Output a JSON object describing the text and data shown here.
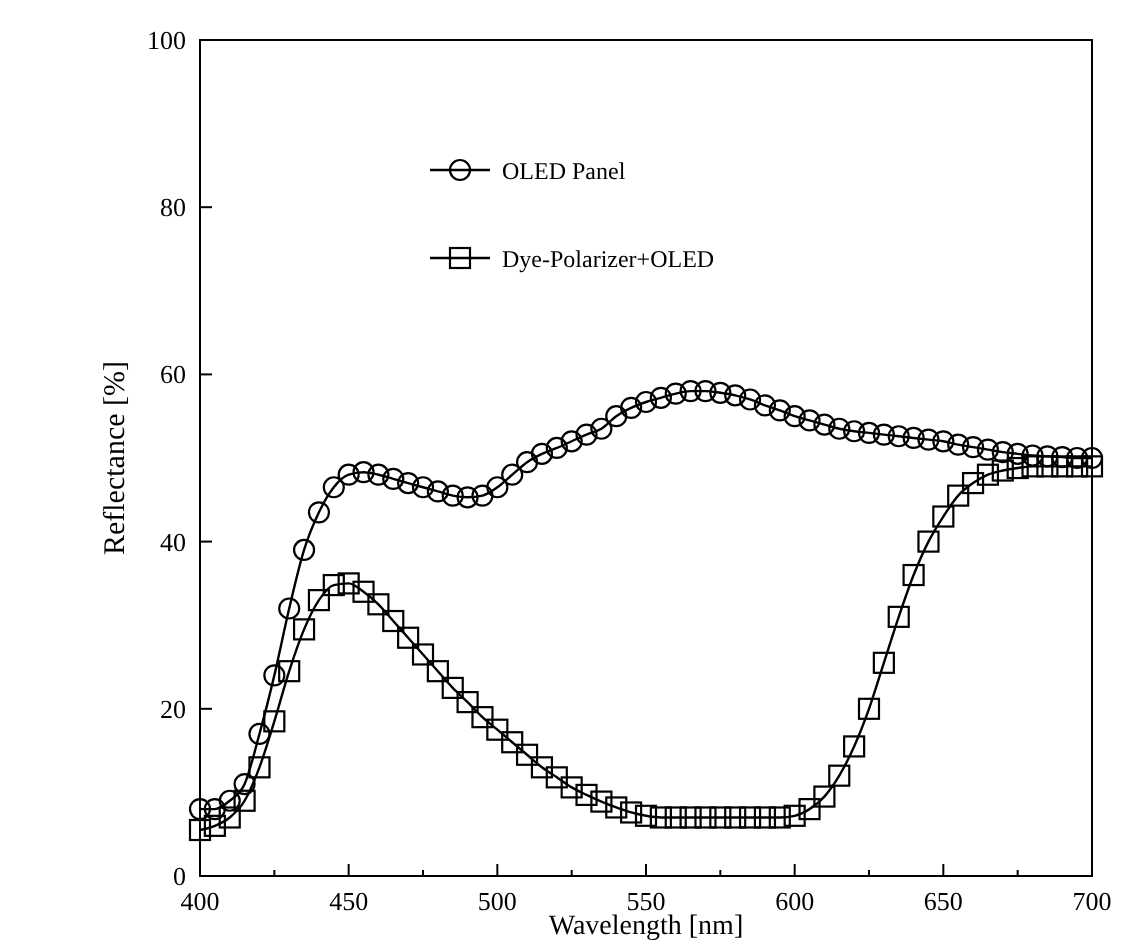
{
  "chart_data": {
    "type": "line",
    "xlabel": "Wavelength [nm]",
    "ylabel": "Reflectance [%]",
    "x": [
      400,
      405,
      410,
      415,
      420,
      425,
      430,
      435,
      440,
      445,
      450,
      455,
      460,
      465,
      470,
      475,
      480,
      485,
      490,
      495,
      500,
      505,
      510,
      515,
      520,
      525,
      530,
      535,
      540,
      545,
      550,
      555,
      560,
      565,
      570,
      575,
      580,
      585,
      590,
      595,
      600,
      605,
      610,
      615,
      620,
      625,
      630,
      635,
      640,
      645,
      650,
      655,
      660,
      665,
      670,
      675,
      680,
      685,
      690,
      695,
      700
    ],
    "series": [
      {
        "name": "OLED Panel",
        "color": "#000000",
        "marker": "circle",
        "values": [
          8,
          8,
          9,
          11,
          17,
          24,
          32,
          39,
          43.5,
          46.5,
          48,
          48.3,
          48,
          47.5,
          47,
          46.5,
          46,
          45.5,
          45.3,
          45.5,
          46.5,
          48,
          49.5,
          50.5,
          51.2,
          52,
          52.8,
          53.5,
          55,
          56,
          56.7,
          57.2,
          57.7,
          58,
          58,
          57.8,
          57.5,
          57,
          56.3,
          55.7,
          55,
          54.5,
          54,
          53.5,
          53.2,
          53,
          52.8,
          52.6,
          52.4,
          52.2,
          52,
          51.6,
          51.3,
          51,
          50.7,
          50.5,
          50.3,
          50.2,
          50.1,
          50,
          50
        ]
      },
      {
        "name": "Dye-Polarizer+OLED",
        "color": "#000000",
        "marker": "square",
        "values": [
          5.5,
          6,
          7,
          9,
          13,
          18.5,
          24.5,
          29.5,
          33,
          34.8,
          35,
          34,
          32.5,
          30.5,
          28.5,
          26.5,
          24.5,
          22.5,
          20.8,
          19,
          17.5,
          16,
          14.5,
          13,
          11.8,
          10.6,
          9.7,
          8.9,
          8.2,
          7.6,
          7.2,
          7,
          7,
          7,
          7,
          7,
          7,
          7,
          7,
          7,
          7.2,
          8,
          9.5,
          12,
          15.5,
          20,
          25.5,
          31,
          36,
          40,
          43,
          45.5,
          47,
          48,
          48.5,
          48.8,
          49,
          49,
          49,
          49,
          49
        ]
      }
    ],
    "xlim": [
      400,
      700
    ],
    "xticks": [
      400,
      {
        "value": 425,
        "label": null
      },
      450,
      {
        "value": 475,
        "label": null
      },
      500,
      {
        "value": 525,
        "label": null
      },
      550,
      {
        "value": 575,
        "label": null
      },
      600,
      {
        "value": 625,
        "label": null
      },
      650,
      {
        "value": 675,
        "label": null
      },
      700
    ],
    "ylim": [
      0,
      100
    ],
    "yticks": [
      0,
      20,
      40,
      60,
      80,
      100
    ],
    "grid": false,
    "legend": "top",
    "line_style": "solid"
  }
}
